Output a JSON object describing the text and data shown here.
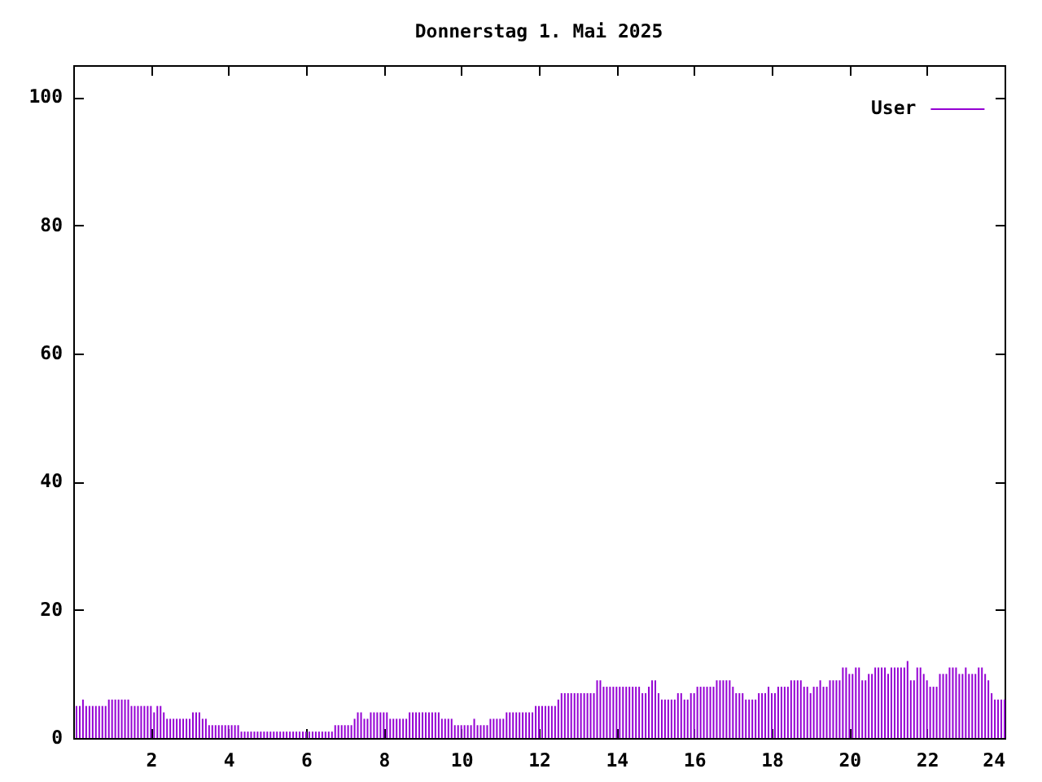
{
  "chart_data": {
    "type": "bar",
    "title": "Donnerstag 1. Mai 2025",
    "x": [
      0.083,
      0.167,
      0.25,
      0.333,
      0.417,
      0.5,
      0.583,
      0.667,
      0.75,
      0.833,
      0.917,
      1,
      1.083,
      1.167,
      1.25,
      1.333,
      1.417,
      1.5,
      1.583,
      1.667,
      1.75,
      1.833,
      1.917,
      2,
      2.083,
      2.167,
      2.25,
      2.333,
      2.417,
      2.5,
      2.583,
      2.667,
      2.75,
      2.833,
      2.917,
      3,
      3.083,
      3.167,
      3.25,
      3.333,
      3.417,
      3.5,
      3.583,
      3.667,
      3.75,
      3.833,
      3.917,
      4,
      4.083,
      4.167,
      4.25,
      4.333,
      4.417,
      4.5,
      4.583,
      4.667,
      4.75,
      4.833,
      4.917,
      5,
      5.083,
      5.167,
      5.25,
      5.333,
      5.417,
      5.5,
      5.583,
      5.667,
      5.75,
      5.833,
      5.917,
      6,
      6.083,
      6.167,
      6.25,
      6.333,
      6.417,
      6.5,
      6.583,
      6.667,
      6.75,
      6.833,
      6.917,
      7,
      7.083,
      7.167,
      7.25,
      7.333,
      7.417,
      7.5,
      7.583,
      7.667,
      7.75,
      7.833,
      7.917,
      8,
      8.083,
      8.167,
      8.25,
      8.333,
      8.417,
      8.5,
      8.583,
      8.667,
      8.75,
      8.833,
      8.917,
      9,
      9.083,
      9.167,
      9.25,
      9.333,
      9.417,
      9.5,
      9.583,
      9.667,
      9.75,
      9.833,
      9.917,
      10,
      10.083,
      10.167,
      10.25,
      10.333,
      10.417,
      10.5,
      10.583,
      10.667,
      10.75,
      10.833,
      10.917,
      11,
      11.083,
      11.167,
      11.25,
      11.333,
      11.417,
      11.5,
      11.583,
      11.667,
      11.75,
      11.833,
      11.917,
      12,
      12.083,
      12.167,
      12.25,
      12.333,
      12.417,
      12.5,
      12.583,
      12.667,
      12.75,
      12.833,
      12.917,
      13,
      13.083,
      13.167,
      13.25,
      13.333,
      13.417,
      13.5,
      13.583,
      13.667,
      13.75,
      13.833,
      13.917,
      14,
      14.083,
      14.167,
      14.25,
      14.333,
      14.417,
      14.5,
      14.583,
      14.667,
      14.75,
      14.833,
      14.917,
      15,
      15.083,
      15.167,
      15.25,
      15.333,
      15.417,
      15.5,
      15.583,
      15.667,
      15.75,
      15.833,
      15.917,
      16,
      16.083,
      16.167,
      16.25,
      16.333,
      16.417,
      16.5,
      16.583,
      16.667,
      16.75,
      16.833,
      16.917,
      17,
      17.083,
      17.167,
      17.25,
      17.333,
      17.417,
      17.5,
      17.583,
      17.667,
      17.75,
      17.833,
      17.917,
      18,
      18.083,
      18.167,
      18.25,
      18.333,
      18.417,
      18.5,
      18.583,
      18.667,
      18.75,
      18.833,
      18.917,
      19,
      19.083,
      19.167,
      19.25,
      19.333,
      19.417,
      19.5,
      19.583,
      19.667,
      19.75,
      19.833,
      19.917,
      20,
      20.083,
      20.167,
      20.25,
      20.333,
      20.417,
      20.5,
      20.583,
      20.667,
      20.75,
      20.833,
      20.917,
      21,
      21.083,
      21.167,
      21.25,
      21.333,
      21.417,
      21.5,
      21.583,
      21.667,
      21.75,
      21.833,
      21.917,
      22,
      22.083,
      22.167,
      22.25,
      22.333,
      22.417,
      22.5,
      22.583,
      22.667,
      22.75,
      22.833,
      22.917,
      23,
      23.083,
      23.167,
      23.25,
      23.333,
      23.417,
      23.5,
      23.583,
      23.667,
      23.75,
      23.833,
      23.917,
      24
    ],
    "series": [
      {
        "name": "User",
        "color": "#9400d3",
        "values": [
          5,
          5,
          6,
          5,
          5,
          5,
          5,
          5,
          5,
          5,
          6,
          6,
          6,
          6,
          6,
          6,
          6,
          5,
          5,
          5,
          5,
          5,
          5,
          5,
          4,
          5,
          5,
          4,
          3,
          3,
          3,
          3,
          3,
          3,
          3,
          3,
          4,
          4,
          4,
          3,
          3,
          2,
          2,
          2,
          2,
          2,
          2,
          2,
          2,
          2,
          2,
          1,
          1,
          1,
          1,
          1,
          1,
          1,
          1,
          1,
          1,
          1,
          1,
          1,
          1,
          1,
          1,
          1,
          1,
          1,
          1,
          1,
          1,
          1,
          1,
          1,
          1,
          1,
          1,
          1,
          2,
          2,
          2,
          2,
          2,
          2,
          3,
          4,
          4,
          3,
          3,
          4,
          4,
          4,
          4,
          4,
          4,
          3,
          3,
          3,
          3,
          3,
          3,
          4,
          4,
          4,
          4,
          4,
          4,
          4,
          4,
          4,
          4,
          3,
          3,
          3,
          3,
          2,
          2,
          2,
          2,
          2,
          2,
          3,
          2,
          2,
          2,
          2,
          3,
          3,
          3,
          3,
          3,
          4,
          4,
          4,
          4,
          4,
          4,
          4,
          4,
          4,
          5,
          5,
          5,
          5,
          5,
          5,
          5,
          6,
          7,
          7,
          7,
          7,
          7,
          7,
          7,
          7,
          7,
          7,
          7,
          9,
          9,
          8,
          8,
          8,
          8,
          8,
          8,
          8,
          8,
          8,
          8,
          8,
          8,
          7,
          7,
          8,
          9,
          9,
          7,
          6,
          6,
          6,
          6,
          6,
          7,
          7,
          6,
          6,
          7,
          7,
          8,
          8,
          8,
          8,
          8,
          8,
          9,
          9,
          9,
          9,
          9,
          8,
          7,
          7,
          7,
          6,
          6,
          6,
          6,
          7,
          7,
          7,
          8,
          7,
          7,
          8,
          8,
          8,
          8,
          9,
          9,
          9,
          9,
          8,
          8,
          7,
          8,
          8,
          9,
          8,
          8,
          9,
          9,
          9,
          9,
          11,
          11,
          10,
          10,
          11,
          11,
          9,
          9,
          10,
          10,
          11,
          11,
          11,
          11,
          10,
          11,
          11,
          11,
          11,
          11,
          12,
          9,
          9,
          11,
          11,
          10,
          9,
          8,
          8,
          8,
          10,
          10,
          10,
          11,
          11,
          11,
          10,
          10,
          11,
          10,
          10,
          10,
          11,
          11,
          10,
          9,
          7,
          6,
          6,
          6,
          6
        ]
      }
    ],
    "xlim": [
      0,
      24
    ],
    "xticks": [
      2,
      4,
      6,
      8,
      10,
      12,
      14,
      16,
      18,
      20,
      22,
      24
    ],
    "ylim": [
      0,
      105
    ],
    "yticks": [
      0,
      20,
      40,
      60,
      80,
      100
    ],
    "legend": "top right"
  }
}
